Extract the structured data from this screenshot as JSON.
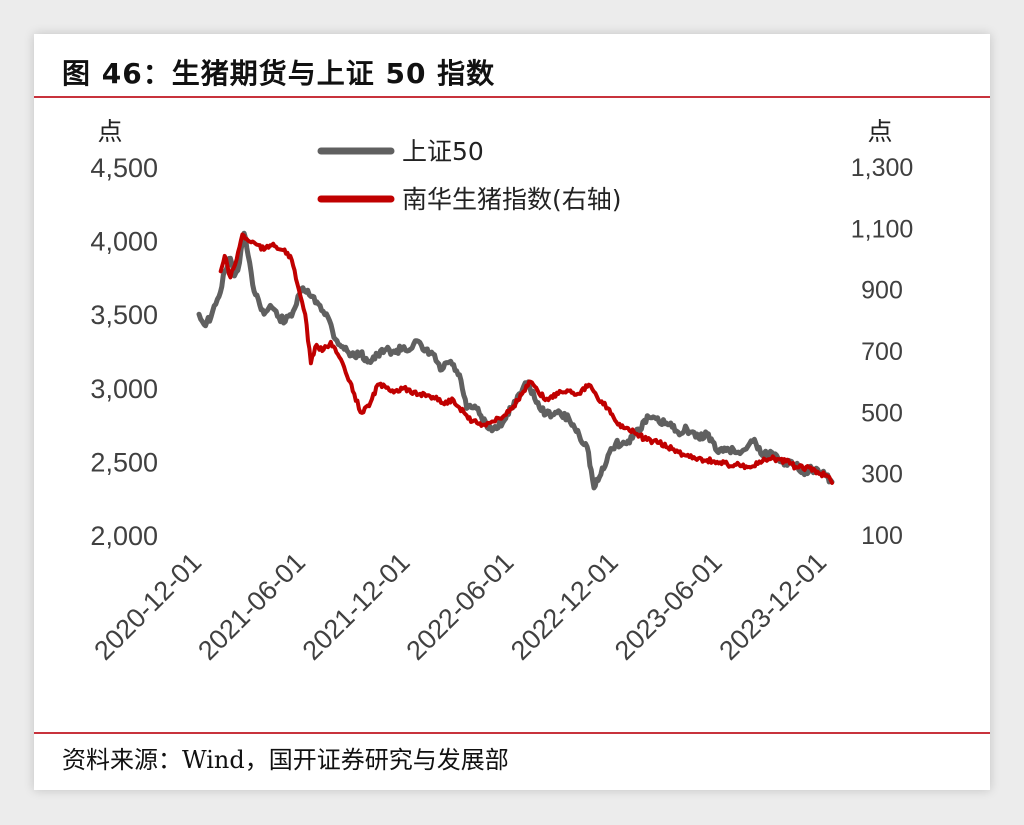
{
  "header": {
    "title": "图 46：生猪期货与上证 50 指数"
  },
  "footer": {
    "source": "资料来源：Wind，国开证券研究与发展部"
  },
  "chart_data": {
    "type": "line",
    "title": "图 46：生猪期货与上证 50 指数",
    "ylabel_left": "点",
    "ylabel_right": "点",
    "y_left": {
      "min": 2000,
      "max": 4500,
      "ticks": [
        2000,
        2500,
        3000,
        3500,
        4000,
        4500
      ],
      "tick_labels": [
        "2,000",
        "2,500",
        "3,000",
        "3,500",
        "4,000",
        "4,500"
      ]
    },
    "y_right": {
      "min": 100,
      "max": 1300,
      "ticks": [
        100,
        300,
        500,
        700,
        900,
        1100,
        1300
      ],
      "tick_labels": [
        "100",
        "300",
        "500",
        "700",
        "900",
        "1,100",
        "1,300"
      ]
    },
    "x_ticks": [
      "2020-12-01",
      "2021-06-01",
      "2021-12-01",
      "2022-06-01",
      "2022-12-01",
      "2023-06-01",
      "2023-12-01"
    ],
    "legend_position": "top-center",
    "grid": false,
    "series": [
      {
        "name": "上证50",
        "axis": "left",
        "color": "#606060",
        "points": [
          [
            "2020-12-01",
            3500
          ],
          [
            "2020-12-10",
            3430
          ],
          [
            "2020-12-22",
            3480
          ],
          [
            "2021-01-05",
            3620
          ],
          [
            "2021-01-15",
            3790
          ],
          [
            "2021-01-25",
            3880
          ],
          [
            "2021-02-01",
            3760
          ],
          [
            "2021-02-10",
            3850
          ],
          [
            "2021-02-18",
            4050
          ],
          [
            "2021-02-25",
            3900
          ],
          [
            "2021-03-05",
            3700
          ],
          [
            "2021-03-15",
            3600
          ],
          [
            "2021-03-25",
            3500
          ],
          [
            "2021-04-05",
            3560
          ],
          [
            "2021-04-20",
            3480
          ],
          [
            "2021-05-01",
            3450
          ],
          [
            "2021-05-15",
            3520
          ],
          [
            "2021-06-01",
            3680
          ],
          [
            "2021-06-15",
            3620
          ],
          [
            "2021-07-01",
            3560
          ],
          [
            "2021-07-15",
            3480
          ],
          [
            "2021-07-28",
            3330
          ],
          [
            "2021-08-10",
            3280
          ],
          [
            "2021-08-25",
            3220
          ],
          [
            "2021-09-10",
            3230
          ],
          [
            "2021-09-25",
            3180
          ],
          [
            "2021-10-10",
            3220
          ],
          [
            "2021-10-25",
            3260
          ],
          [
            "2021-11-10",
            3240
          ],
          [
            "2021-11-25",
            3280
          ],
          [
            "2021-12-01",
            3250
          ],
          [
            "2021-12-15",
            3320
          ],
          [
            "2021-12-31",
            3250
          ],
          [
            "2022-01-15",
            3230
          ],
          [
            "2022-01-28",
            3120
          ],
          [
            "2022-02-15",
            3180
          ],
          [
            "2022-03-05",
            3050
          ],
          [
            "2022-03-15",
            2860
          ],
          [
            "2022-04-01",
            2860
          ],
          [
            "2022-04-20",
            2730
          ],
          [
            "2022-05-01",
            2720
          ],
          [
            "2022-05-20",
            2780
          ],
          [
            "2022-06-01",
            2860
          ],
          [
            "2022-06-15",
            2960
          ],
          [
            "2022-07-01",
            3040
          ],
          [
            "2022-07-15",
            2900
          ],
          [
            "2022-08-01",
            2820
          ],
          [
            "2022-08-20",
            2830
          ],
          [
            "2022-09-10",
            2790
          ],
          [
            "2022-09-28",
            2680
          ],
          [
            "2022-10-12",
            2600
          ],
          [
            "2022-10-24",
            2320
          ],
          [
            "2022-11-05",
            2410
          ],
          [
            "2022-11-20",
            2560
          ],
          [
            "2022-12-01",
            2620
          ],
          [
            "2022-12-20",
            2620
          ],
          [
            "2023-01-10",
            2720
          ],
          [
            "2023-01-28",
            2800
          ],
          [
            "2023-02-15",
            2770
          ],
          [
            "2023-03-05",
            2750
          ],
          [
            "2023-03-20",
            2700
          ],
          [
            "2023-04-05",
            2720
          ],
          [
            "2023-04-25",
            2660
          ],
          [
            "2023-05-10",
            2690
          ],
          [
            "2023-05-30",
            2560
          ],
          [
            "2023-06-15",
            2590
          ],
          [
            "2023-07-01",
            2560
          ],
          [
            "2023-07-15",
            2580
          ],
          [
            "2023-08-01",
            2650
          ],
          [
            "2023-08-15",
            2540
          ],
          [
            "2023-09-01",
            2560
          ],
          [
            "2023-09-20",
            2500
          ],
          [
            "2023-10-10",
            2480
          ],
          [
            "2023-10-25",
            2430
          ],
          [
            "2023-11-10",
            2450
          ],
          [
            "2023-11-25",
            2420
          ],
          [
            "2023-12-05",
            2400
          ],
          [
            "2023-12-15",
            2360
          ]
        ]
      },
      {
        "name": "南华生猪指数(右轴)",
        "axis": "right",
        "color": "#c00000",
        "points": [
          [
            "2021-01-08",
            960
          ],
          [
            "2021-01-15",
            1010
          ],
          [
            "2021-01-25",
            940
          ],
          [
            "2021-02-05",
            1000
          ],
          [
            "2021-02-15",
            1080
          ],
          [
            "2021-02-25",
            1060
          ],
          [
            "2021-03-10",
            1050
          ],
          [
            "2021-03-25",
            1030
          ],
          [
            "2021-04-10",
            1050
          ],
          [
            "2021-04-25",
            1030
          ],
          [
            "2021-05-10",
            1010
          ],
          [
            "2021-05-25",
            900
          ],
          [
            "2021-06-05",
            820
          ],
          [
            "2021-06-15",
            660
          ],
          [
            "2021-06-25",
            720
          ],
          [
            "2021-07-05",
            700
          ],
          [
            "2021-07-20",
            730
          ],
          [
            "2021-08-01",
            690
          ],
          [
            "2021-08-15",
            630
          ],
          [
            "2021-08-30",
            560
          ],
          [
            "2021-09-10",
            500
          ],
          [
            "2021-09-25",
            520
          ],
          [
            "2021-10-10",
            590
          ],
          [
            "2021-10-25",
            580
          ],
          [
            "2021-11-10",
            570
          ],
          [
            "2021-11-25",
            580
          ],
          [
            "2021-12-10",
            560
          ],
          [
            "2021-12-31",
            560
          ],
          [
            "2022-01-15",
            550
          ],
          [
            "2022-02-01",
            530
          ],
          [
            "2022-02-20",
            540
          ],
          [
            "2022-03-10",
            500
          ],
          [
            "2022-03-25",
            470
          ],
          [
            "2022-04-15",
            460
          ],
          [
            "2022-05-01",
            470
          ],
          [
            "2022-05-20",
            490
          ],
          [
            "2022-06-05",
            520
          ],
          [
            "2022-06-20",
            560
          ],
          [
            "2022-07-05",
            600
          ],
          [
            "2022-07-20",
            560
          ],
          [
            "2022-08-05",
            540
          ],
          [
            "2022-08-25",
            570
          ],
          [
            "2022-09-10",
            570
          ],
          [
            "2022-09-25",
            560
          ],
          [
            "2022-10-15",
            590
          ],
          [
            "2022-11-01",
            540
          ],
          [
            "2022-11-20",
            510
          ],
          [
            "2022-12-05",
            460
          ],
          [
            "2022-12-20",
            450
          ],
          [
            "2023-01-05",
            430
          ],
          [
            "2023-01-25",
            410
          ],
          [
            "2023-02-15",
            400
          ],
          [
            "2023-03-10",
            380
          ],
          [
            "2023-04-01",
            360
          ],
          [
            "2023-04-25",
            350
          ],
          [
            "2023-05-20",
            340
          ],
          [
            "2023-06-15",
            330
          ],
          [
            "2023-07-05",
            330
          ],
          [
            "2023-07-25",
            320
          ],
          [
            "2023-08-15",
            340
          ],
          [
            "2023-09-05",
            350
          ],
          [
            "2023-09-25",
            340
          ],
          [
            "2023-10-15",
            320
          ],
          [
            "2023-11-05",
            320
          ],
          [
            "2023-11-25",
            300
          ],
          [
            "2023-12-10",
            290
          ],
          [
            "2023-12-15",
            270
          ]
        ]
      }
    ]
  }
}
